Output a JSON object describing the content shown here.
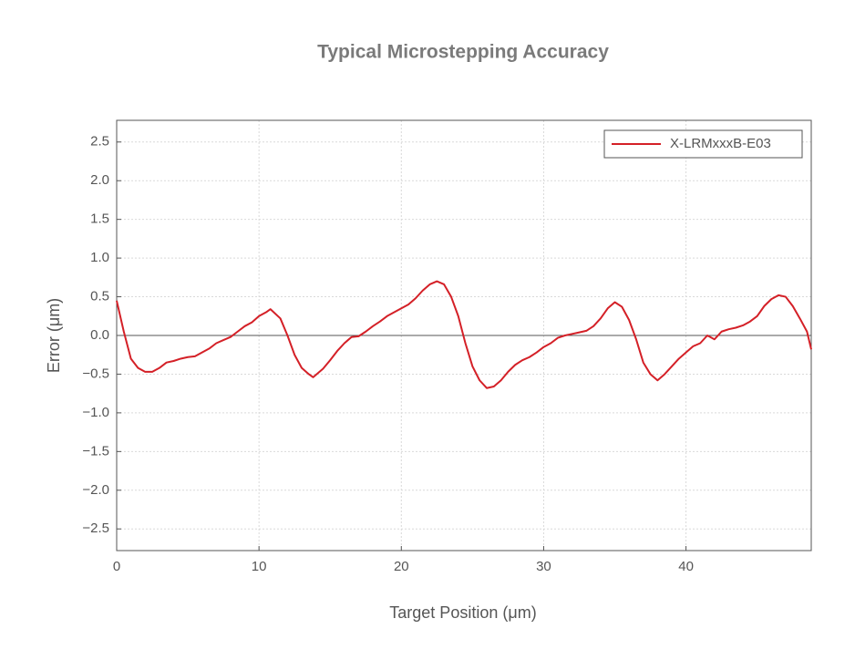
{
  "chart_data": {
    "type": "line",
    "title": "Typical Microstepping Accuracy",
    "x_label": "Target Position (μm)",
    "y_label": "Error (μm)",
    "xlim": [
      0,
      48.8
    ],
    "ylim": [
      -2.78,
      2.78
    ],
    "xticks": [
      0,
      10,
      20,
      30,
      40
    ],
    "yticks": [
      {
        "value": -2.5,
        "label": "−2.5"
      },
      {
        "value": -2.0,
        "label": "−2.0"
      },
      {
        "value": -1.5,
        "label": "−1.5"
      },
      {
        "value": -1.0,
        "label": "−1.0"
      },
      {
        "value": -0.5,
        "label": "−0.5"
      },
      {
        "value": 0,
        "label": "0.0"
      },
      {
        "value": 0.5,
        "label": "0.5"
      },
      {
        "value": 1.0,
        "label": "1.0"
      },
      {
        "value": 1.5,
        "label": "1.5"
      },
      {
        "value": 2.0,
        "label": "2.0"
      },
      {
        "value": 2.5,
        "label": "2.5"
      }
    ],
    "grid": true,
    "legend": "upper right",
    "x": [
      0,
      0.5,
      1,
      1.5,
      2,
      2.5,
      3,
      3.5,
      4,
      4.5,
      5,
      5.5,
      6,
      6.5,
      7,
      7.5,
      8,
      8.5,
      9,
      9.5,
      10,
      10.5,
      10.8,
      11.5,
      12,
      12.5,
      13,
      13.5,
      13.8,
      14.5,
      15,
      15.5,
      16,
      16.5,
      17,
      17.5,
      18,
      18.5,
      19,
      19.5,
      20,
      20.5,
      21,
      21.5,
      22,
      22.5,
      23,
      23.5,
      24,
      24.5,
      25,
      25.5,
      26,
      26.5,
      27,
      27.5,
      28,
      28.5,
      29,
      29.5,
      30,
      30.5,
      31,
      31.5,
      32,
      32.5,
      33,
      33.5,
      34,
      34.5,
      35,
      35.5,
      36,
      36.5,
      37,
      37.5,
      38,
      38.5,
      39,
      39.5,
      40,
      40.5,
      41,
      41.5,
      42,
      42.5,
      43,
      43.5,
      44,
      44.5,
      45,
      45.5,
      46,
      46.5,
      47,
      47.5,
      48,
      48.5,
      48.8
    ],
    "series": [
      {
        "name": "X-LRMxxxB-E03",
        "color": "#d42027",
        "values": [
          0.45,
          0.05,
          -0.3,
          -0.42,
          -0.47,
          -0.47,
          -0.42,
          -0.35,
          -0.33,
          -0.3,
          -0.28,
          -0.27,
          -0.22,
          -0.17,
          -0.1,
          -0.06,
          -0.02,
          0.05,
          0.12,
          0.17,
          0.25,
          0.3,
          0.34,
          0.22,
          0.0,
          -0.25,
          -0.42,
          -0.5,
          -0.54,
          -0.43,
          -0.32,
          -0.2,
          -0.1,
          -0.02,
          -0.01,
          0.05,
          0.12,
          0.18,
          0.25,
          0.3,
          0.35,
          0.4,
          0.48,
          0.58,
          0.66,
          0.7,
          0.66,
          0.5,
          0.25,
          -0.1,
          -0.4,
          -0.58,
          -0.68,
          -0.66,
          -0.58,
          -0.47,
          -0.38,
          -0.32,
          -0.28,
          -0.22,
          -0.15,
          -0.1,
          -0.03,
          0.0,
          0.02,
          0.04,
          0.06,
          0.12,
          0.22,
          0.35,
          0.43,
          0.37,
          0.2,
          -0.05,
          -0.35,
          -0.5,
          -0.58,
          -0.5,
          -0.4,
          -0.3,
          -0.22,
          -0.14,
          -0.1,
          0.0,
          -0.05,
          0.05,
          0.08,
          0.1,
          0.13,
          0.18,
          0.25,
          0.38,
          0.47,
          0.52,
          0.5,
          0.38,
          0.22,
          0.05,
          -0.18
        ]
      }
    ]
  }
}
